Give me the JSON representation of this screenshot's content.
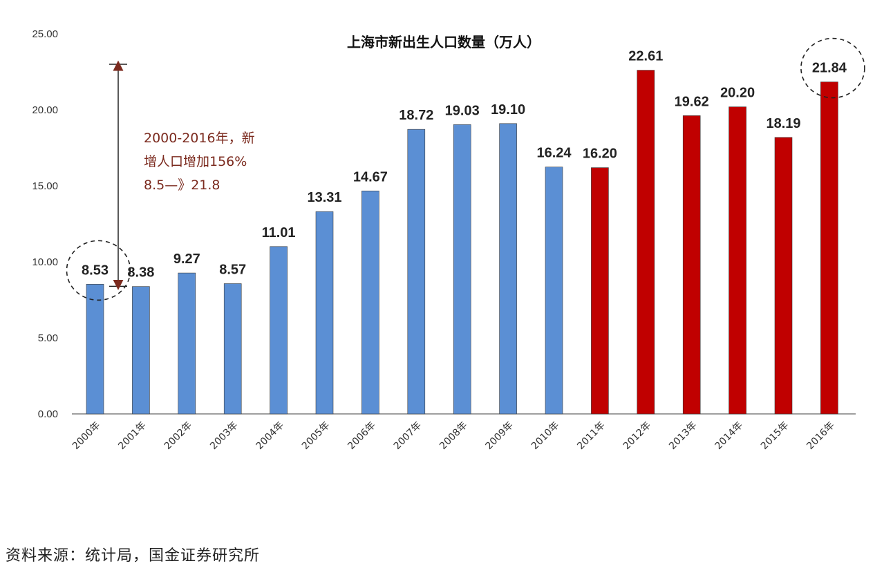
{
  "chart_data": {
    "type": "bar",
    "title": "上海市新出生人口数量（万人）",
    "categories": [
      "2000年",
      "2001年",
      "2002年",
      "2003年",
      "2004年",
      "2005年",
      "2006年",
      "2007年",
      "2008年",
      "2009年",
      "2010年",
      "2011年",
      "2012年",
      "2013年",
      "2014年",
      "2015年",
      "2016年"
    ],
    "values": [
      8.53,
      8.38,
      9.27,
      8.57,
      11.01,
      13.31,
      14.67,
      18.72,
      19.03,
      19.1,
      16.24,
      16.2,
      22.61,
      19.62,
      20.2,
      18.19,
      21.84
    ],
    "value_labels": [
      "8.53",
      "8.38",
      "9.27",
      "8.57",
      "11.01",
      "13.31",
      "14.67",
      "18.72",
      "19.03",
      "19.10",
      "16.24",
      "16.20",
      "22.61",
      "19.62",
      "20.20",
      "18.19",
      "21.84"
    ],
    "bar_colors": [
      "#5b8fd4",
      "#5b8fd4",
      "#5b8fd4",
      "#5b8fd4",
      "#5b8fd4",
      "#5b8fd4",
      "#5b8fd4",
      "#5b8fd4",
      "#5b8fd4",
      "#5b8fd4",
      "#5b8fd4",
      "#c00000",
      "#c00000",
      "#c00000",
      "#c00000",
      "#c00000",
      "#c00000"
    ],
    "ylim": [
      0,
      25
    ],
    "yticks": [
      "0.00",
      "5.00",
      "10.00",
      "15.00",
      "20.00",
      "25.00"
    ],
    "grid": false,
    "annotation": {
      "lines": [
        "2000-2016年，新",
        "增人口增加156%",
        "8.5—》21.8"
      ],
      "from_value": 8.53,
      "to_value": 23.0
    },
    "highlighted": [
      "2000年",
      "2016年"
    ]
  },
  "source": "资料来源：统计局，国金证券研究所"
}
